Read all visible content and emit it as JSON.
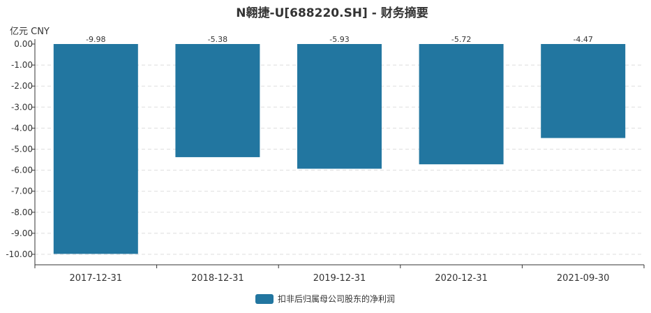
{
  "chart_data": {
    "type": "bar",
    "title": "N翱捷-U[688220.SH] - 财务摘要",
    "unit_label": "亿元  CNY",
    "categories": [
      "2017-12-31",
      "2018-12-31",
      "2019-12-31",
      "2020-12-31",
      "2021-09-30"
    ],
    "series": [
      {
        "name": "扣非后归属母公司股东的净利润",
        "values": [
          -9.98,
          -5.38,
          -5.93,
          -5.72,
          -4.47
        ],
        "color": "#2276a0"
      }
    ],
    "data_labels": [
      "-9.98",
      "-5.38",
      "-5.93",
      "-5.72",
      "-4.47"
    ],
    "ylim": [
      -10.5,
      0
    ],
    "yticks": [
      "0.00",
      "-1.00",
      "-2.00",
      "-3.00",
      "-4.00",
      "-5.00",
      "-6.00",
      "-7.00",
      "-8.00",
      "-9.00",
      "-10.00"
    ],
    "grid": true,
    "legend_position": "bottom-center"
  }
}
